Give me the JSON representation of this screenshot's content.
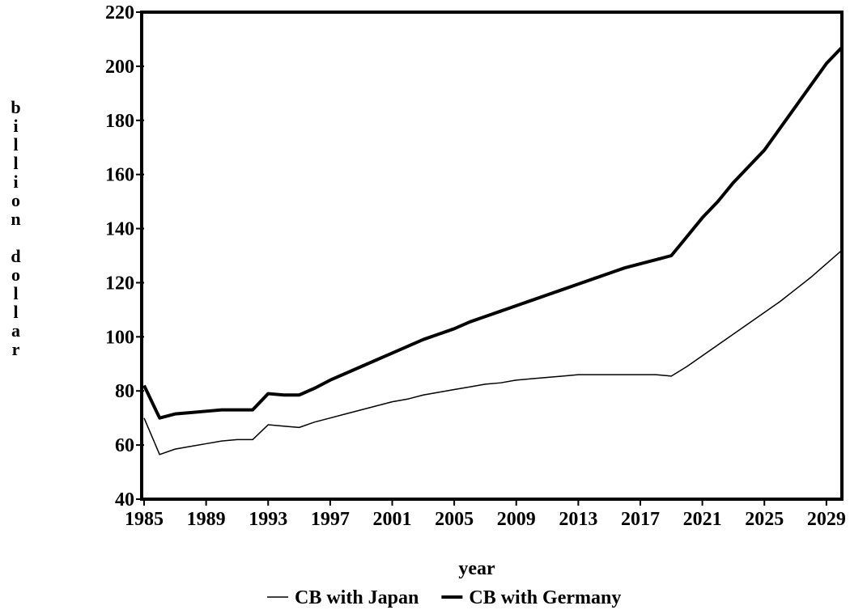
{
  "chart_data": {
    "type": "line",
    "x_label": "year",
    "y_label": "billion dollar",
    "x": [
      1985,
      1986,
      1987,
      1988,
      1989,
      1990,
      1991,
      1992,
      1993,
      1994,
      1995,
      1996,
      1997,
      1998,
      1999,
      2000,
      2001,
      2002,
      2003,
      2004,
      2005,
      2006,
      2007,
      2008,
      2009,
      2010,
      2011,
      2012,
      2013,
      2014,
      2015,
      2016,
      2017,
      2018,
      2019,
      2020,
      2021,
      2022,
      2023,
      2024,
      2025,
      2026,
      2027,
      2028,
      2029,
      2030
    ],
    "series": [
      {
        "name": "CB with Japan",
        "color": "#000000",
        "line_width": 1.5,
        "values": [
          70,
          56.5,
          58.5,
          59.5,
          60.5,
          61.5,
          62,
          62,
          67.5,
          67,
          66.5,
          68.5,
          70,
          71.5,
          73,
          74.5,
          76,
          77,
          78.5,
          79.5,
          80.5,
          81.5,
          82.5,
          83,
          84,
          84.5,
          85,
          85.5,
          86,
          86,
          86,
          86,
          86,
          86,
          85.5,
          89,
          93,
          97,
          101,
          105,
          109,
          113,
          117.5,
          122,
          127,
          132
        ]
      },
      {
        "name": "CB with Germany",
        "color": "#000000",
        "line_width": 4,
        "values": [
          82,
          70,
          71.5,
          72,
          72.5,
          73,
          73,
          73,
          79,
          78.5,
          78.5,
          81,
          84,
          86.5,
          89,
          91.5,
          94,
          96.5,
          99,
          101,
          103,
          105.5,
          107.5,
          109.5,
          111.5,
          113.5,
          115.5,
          117.5,
          119.5,
          121.5,
          123.5,
          125.5,
          127,
          128.5,
          130,
          137,
          144,
          150,
          157,
          163,
          169,
          177,
          185,
          193,
          201,
          207
        ]
      }
    ],
    "xlim": [
      1985,
      2030
    ],
    "xticks": [
      1985,
      1989,
      1993,
      1997,
      2001,
      2005,
      2009,
      2013,
      2017,
      2021,
      2025,
      2029
    ],
    "ylim": [
      40,
      220
    ],
    "yticks": [
      40,
      60,
      80,
      100,
      120,
      140,
      160,
      180,
      200,
      220
    ],
    "grid": false,
    "legend": "bottom"
  }
}
